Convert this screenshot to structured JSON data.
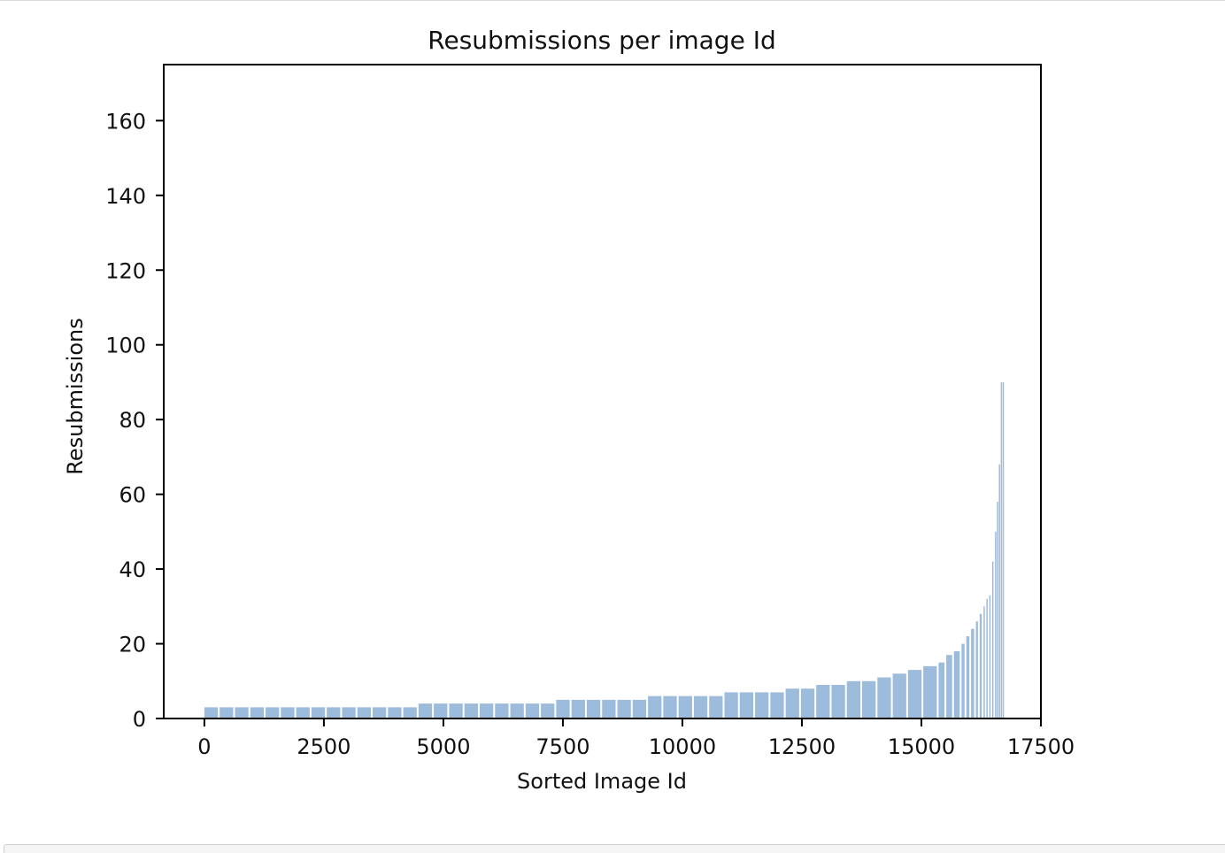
{
  "chart_data": {
    "type": "bar",
    "title": "Resubmissions per image Id",
    "xlabel": "Sorted Image Id",
    "ylabel": "Resubmissions",
    "xlim": [
      -850,
      17500
    ],
    "ylim": [
      0,
      175
    ],
    "xticks": [
      0,
      2500,
      5000,
      7500,
      10000,
      12500,
      15000,
      17500
    ],
    "yticks": [
      0,
      20,
      40,
      60,
      80,
      100,
      120,
      140,
      160
    ],
    "grid": false,
    "bar_color": "#5b8fc4",
    "bar_opacity": 0.6,
    "x": [
      0,
      320,
      640,
      960,
      1280,
      1600,
      1920,
      2240,
      2560,
      2880,
      3200,
      3520,
      3840,
      4160,
      4480,
      4800,
      5120,
      5440,
      5760,
      6080,
      6400,
      6720,
      7040,
      7360,
      7680,
      8000,
      8320,
      8640,
      8960,
      9280,
      9600,
      9920,
      10240,
      10560,
      10880,
      11200,
      11520,
      11840,
      12160,
      12480,
      12800,
      13120,
      13440,
      13760,
      14080,
      14400,
      14720,
      15040,
      15360,
      15520,
      15680,
      15840,
      15940,
      16040,
      16140,
      16220,
      16300,
      16360,
      16420,
      16480,
      16540,
      16580,
      16620,
      16660,
      16700
    ],
    "values": [
      3,
      3,
      3,
      3,
      3,
      3,
      3,
      3,
      3,
      3,
      3,
      3,
      3,
      3,
      4,
      4,
      4,
      4,
      4,
      4,
      4,
      4,
      4,
      5,
      5,
      5,
      5,
      5,
      5,
      6,
      6,
      6,
      6,
      6,
      7,
      7,
      7,
      7,
      8,
      8,
      9,
      9,
      10,
      10,
      11,
      12,
      13,
      14,
      15,
      17,
      18,
      20,
      22,
      24,
      26,
      28,
      30,
      32,
      33,
      42,
      50,
      58,
      68,
      90,
      90
    ]
  }
}
